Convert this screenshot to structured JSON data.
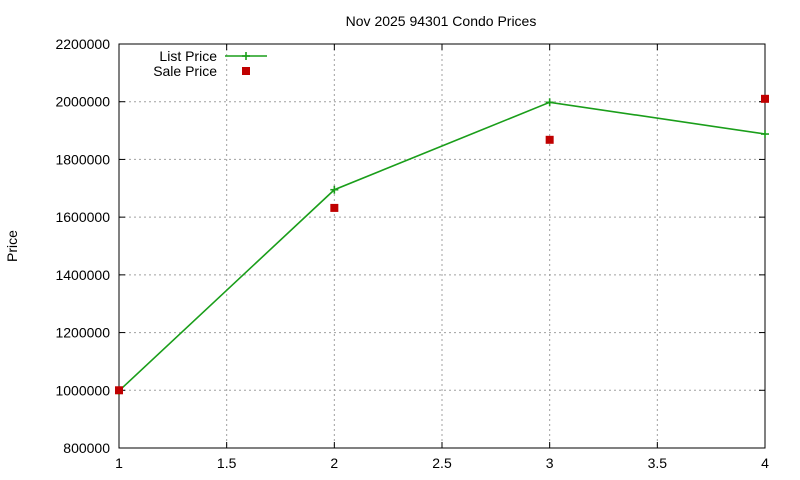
{
  "chart_data": {
    "type": "line",
    "title": "Nov 2025 94301 Condo Prices",
    "xlabel": "",
    "ylabel": "Price",
    "xlim": [
      1,
      4
    ],
    "ylim": [
      800000,
      2200000
    ],
    "x_ticks": [
      1,
      1.5,
      2,
      2.5,
      3,
      3.5,
      4
    ],
    "x_tick_labels": [
      "1",
      "1.5",
      "2",
      "2.5",
      "3",
      "3.5",
      "4"
    ],
    "y_ticks": [
      800000,
      1000000,
      1200000,
      1400000,
      1600000,
      1800000,
      2000000,
      2200000
    ],
    "y_tick_labels": [
      "800000",
      "1000000",
      "1200000",
      "1400000",
      "1600000",
      "1800000",
      "2000000",
      "2200000"
    ],
    "grid": true,
    "legend_position": "top-left",
    "series": [
      {
        "name": "List Price",
        "style": "linespoints",
        "marker": "plus",
        "color": "#1a9e1a",
        "x": [
          1,
          2,
          3,
          4
        ],
        "y": [
          998000,
          1695000,
          1998000,
          1888000
        ]
      },
      {
        "name": "Sale Price",
        "style": "points",
        "marker": "square",
        "color": "#c00000",
        "x": [
          1,
          2,
          3,
          4
        ],
        "y": [
          1000000,
          1632000,
          1868000,
          2010000
        ]
      }
    ]
  }
}
